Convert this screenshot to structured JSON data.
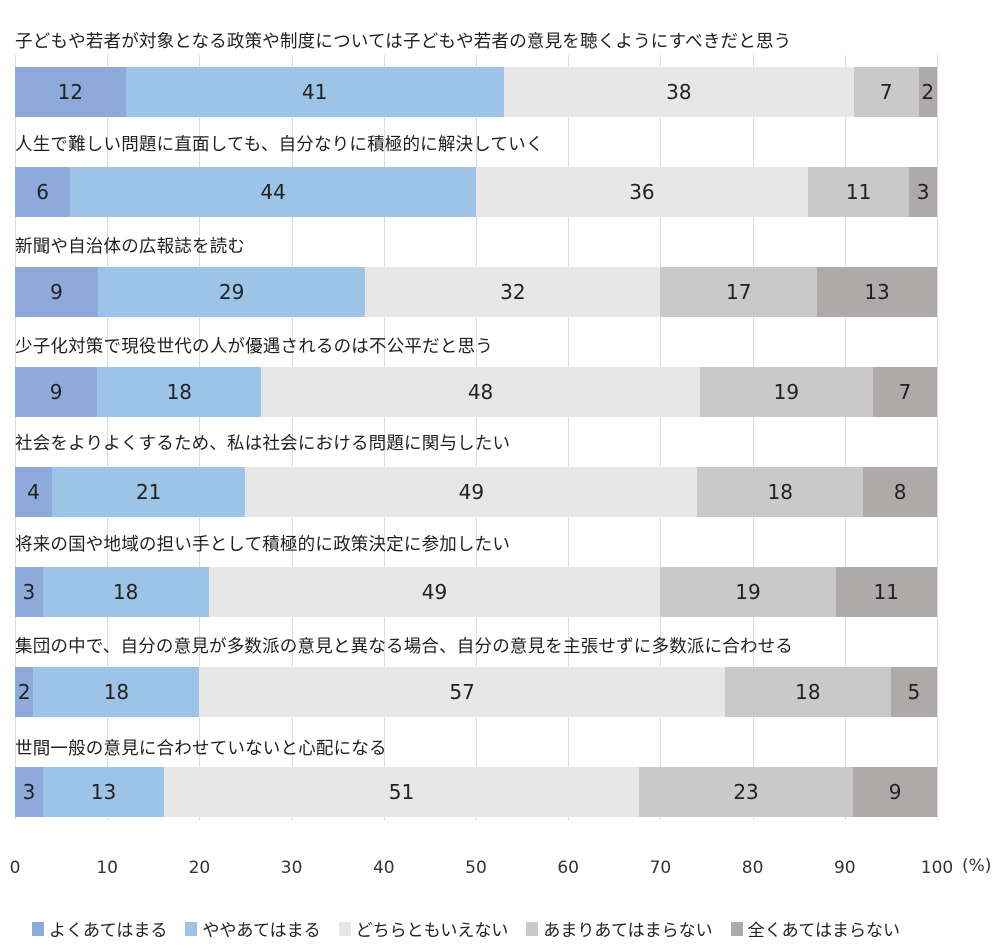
{
  "chart_data": {
    "type": "bar",
    "orientation": "horizontal",
    "stacked": true,
    "title": "",
    "xlabel": "",
    "ylabel": "",
    "unit_label": "(%)",
    "xlim": [
      0,
      100
    ],
    "x_ticks": [
      "0",
      "10",
      "20",
      "30",
      "40",
      "50",
      "60",
      "70",
      "80",
      "90",
      "100"
    ],
    "grid": true,
    "legend_position": "bottom",
    "categories": [
      "子どもや若者が対象となる政策や制度については子どもや若者の意見を聴くようにすべきだと思う",
      "人生で難しい問題に直面しても、自分なりに積極的に解決していく",
      "新聞や自治体の広報誌を読む",
      "少子化対策で現役世代の人が優遇されるのは不公平だと思う",
      "社会をよりよくするため、私は社会における問題に関与したい",
      "将来の国や地域の担い手として積極的に政策決定に参加したい",
      "集団の中で、自分の意見が多数派の意見と異なる場合、自分の意見を主張せずに多数派に合わせる",
      "世間一般の意見に合わせていないと心配になる"
    ],
    "series": [
      {
        "name": "よくあてはまる",
        "color": "#8eaadb",
        "values": [
          12,
          6,
          9,
          9,
          4,
          3,
          2,
          3
        ]
      },
      {
        "name": "ややあてはまる",
        "color": "#9dc3e6",
        "values": [
          41,
          44,
          29,
          18,
          21,
          18,
          18,
          13
        ]
      },
      {
        "name": "どちらともいえない",
        "color": "#e7e7e7",
        "values": [
          38,
          36,
          32,
          48,
          49,
          49,
          57,
          51
        ]
      },
      {
        "name": "あまりあてはまらない",
        "color": "#c9c9c9",
        "values": [
          7,
          11,
          17,
          19,
          18,
          19,
          18,
          23
        ]
      },
      {
        "name": "全くあてはまらない",
        "color": "#aeaaaa",
        "values": [
          2,
          3,
          13,
          7,
          8,
          11,
          5,
          9
        ]
      }
    ]
  }
}
